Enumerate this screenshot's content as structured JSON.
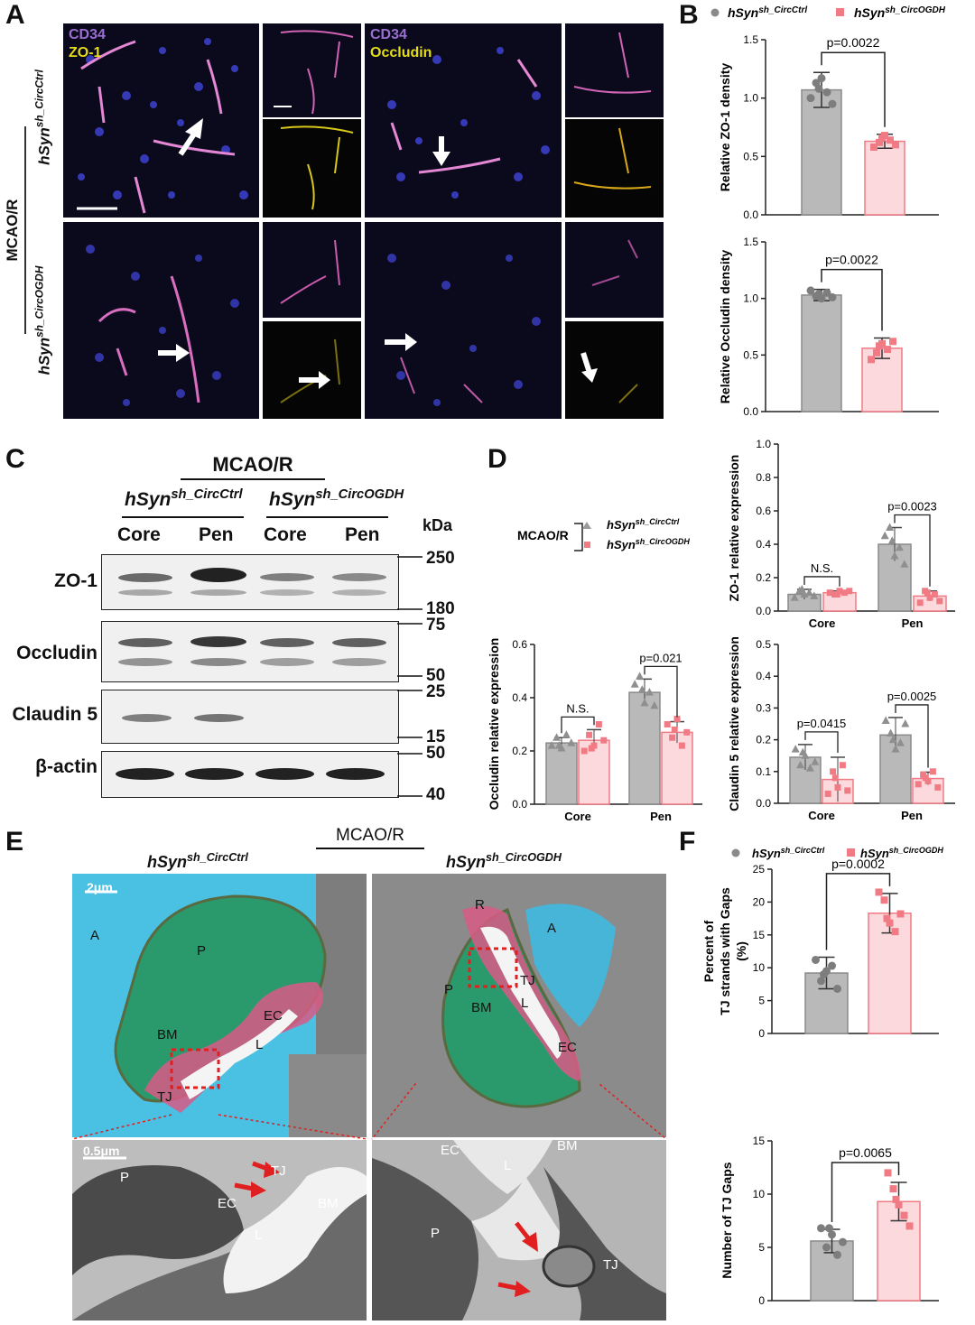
{
  "panel_labels": {
    "a": "A",
    "b": "B",
    "c": "C",
    "d": "D",
    "e": "E",
    "f": "F"
  },
  "groups": {
    "ctrl": "hSyn",
    "ctrl_sup": "sh_CircCtrl",
    "kd": "hSyn",
    "kd_sup": "sh_CircOGDH",
    "model": "MCAO/R"
  },
  "colors": {
    "ctrl": "#b9b9b9",
    "ctrl_dark": "#8a8a8a",
    "kd": "#fcd9dc",
    "kd_dark": "#f07b84"
  },
  "panel_a": {
    "stain_left_1": "CD34",
    "stain_left_2": "ZO-1",
    "stain_right_1": "CD34",
    "stain_right_2": "Occludin"
  },
  "panel_c": {
    "kda": "kDa",
    "lanes": [
      "Core",
      "Pen",
      "Core",
      "Pen"
    ],
    "proteins": [
      "ZO-1",
      "Occludin",
      "Claudin 5",
      "β-actin"
    ],
    "markers": [
      "250",
      "180",
      "75",
      "50",
      "25",
      "15",
      "50",
      "40"
    ]
  },
  "panel_d": {
    "legend_model": "MCAO/R"
  },
  "panel_e": {
    "scale_top": "2μm",
    "scale_bottom": "0.5μm",
    "labels_ctrl_top": [
      "A",
      "P",
      "EC",
      "L",
      "BM",
      "TJ"
    ],
    "labels_kd_top": [
      "R",
      "A",
      "TJ",
      "P",
      "BM",
      "L",
      "EC"
    ],
    "labels_ctrl_bottom": [
      "P",
      "TJ",
      "EC",
      "L",
      "BM"
    ],
    "labels_kd_bottom": [
      "EC",
      "L",
      "BM",
      "P",
      "TJ"
    ]
  },
  "chart_data": [
    {
      "id": "B1",
      "type": "bar",
      "categories": [
        "hSyn sh_CircCtrl",
        "hSyn sh_CircOGDH"
      ],
      "values": [
        1.07,
        0.63
      ],
      "errors": [
        0.15,
        0.06
      ],
      "points": [
        [
          1.0,
          1.13,
          1.17,
          1.05,
          0.95,
          1.08
        ],
        [
          0.58,
          0.62,
          0.68,
          0.64,
          0.6,
          0.66
        ]
      ],
      "ylabel": "Relative ZO-1 density",
      "ylim": [
        0,
        1.5
      ],
      "yticks": [
        0.0,
        0.5,
        1.0,
        1.5
      ],
      "annotation": "p=0.0022"
    },
    {
      "id": "B2",
      "type": "bar",
      "categories": [
        "hSyn sh_CircCtrl",
        "hSyn sh_CircOGDH"
      ],
      "values": [
        1.03,
        0.56
      ],
      "errors": [
        0.05,
        0.09
      ],
      "points": [
        [
          1.07,
          1.02,
          1.0,
          1.05,
          1.01,
          1.04
        ],
        [
          0.46,
          0.52,
          0.6,
          0.55,
          0.62,
          0.58
        ]
      ],
      "ylabel": "Relative Occludin density",
      "ylim": [
        0,
        1.5
      ],
      "yticks": [
        0.0,
        0.5,
        1.0,
        1.5
      ],
      "annotation": "p=0.0022"
    },
    {
      "id": "D1",
      "type": "bar",
      "categories": [
        "Core",
        "Pen"
      ],
      "series": [
        {
          "name": "hSyn sh_CircCtrl",
          "values": [
            0.1,
            0.4
          ],
          "errors": [
            0.03,
            0.1
          ]
        },
        {
          "name": "hSyn sh_CircOGDH",
          "values": [
            0.11,
            0.09
          ],
          "errors": [
            0.01,
            0.03
          ]
        }
      ],
      "points": [
        [
          [
            0.08,
            0.12,
            0.1,
            0.11,
            0.09,
            0.13
          ],
          [
            0.45,
            0.5,
            0.33,
            0.38,
            0.28,
            0.42
          ]
        ],
        [
          [
            0.11,
            0.1,
            0.12,
            0.11,
            0.12,
            0.1
          ],
          [
            0.05,
            0.12,
            0.08,
            0.1,
            0.06,
            0.11
          ]
        ]
      ],
      "ylabel": "ZO-1 relative expression",
      "ylim": [
        0,
        1.0
      ],
      "yticks": [
        0.0,
        0.2,
        0.4,
        0.6,
        0.8,
        1.0
      ],
      "xlabels": [
        "Core",
        "Pen"
      ],
      "annotations": [
        "N.S.",
        "p=0.0023"
      ]
    },
    {
      "id": "D2",
      "type": "bar",
      "categories": [
        "Core",
        "Pen"
      ],
      "series": [
        {
          "name": "hSyn sh_CircCtrl",
          "values": [
            0.23,
            0.42
          ],
          "errors": [
            0.02,
            0.05
          ]
        },
        {
          "name": "hSyn sh_CircOGDH",
          "values": [
            0.24,
            0.27
          ],
          "errors": [
            0.04,
            0.04
          ]
        }
      ],
      "points": [
        [
          [
            0.22,
            0.25,
            0.21,
            0.26,
            0.23,
            0.22
          ],
          [
            0.45,
            0.48,
            0.38,
            0.42,
            0.37,
            0.43
          ]
        ],
        [
          [
            0.2,
            0.26,
            0.22,
            0.3,
            0.24,
            0.21
          ],
          [
            0.3,
            0.25,
            0.32,
            0.22,
            0.27,
            0.28
          ]
        ]
      ],
      "ylabel": "Occludin relative expression",
      "ylim": [
        0,
        0.6
      ],
      "yticks": [
        0.0,
        0.2,
        0.4,
        0.6
      ],
      "xlabels": [
        "Core",
        "Pen"
      ],
      "annotations": [
        "N.S.",
        "p=0.021"
      ]
    },
    {
      "id": "D3",
      "type": "bar",
      "categories": [
        "Core",
        "Pen"
      ],
      "series": [
        {
          "name": "hSyn sh_CircCtrl",
          "values": [
            0.145,
            0.215
          ],
          "errors": [
            0.04,
            0.055
          ]
        },
        {
          "name": "hSyn sh_CircOGDH",
          "values": [
            0.075,
            0.078
          ],
          "errors": [
            0.07,
            0.02
          ]
        }
      ],
      "points": [
        [
          [
            0.17,
            0.12,
            0.15,
            0.11,
            0.13,
            0.16
          ],
          [
            0.26,
            0.22,
            0.17,
            0.19,
            0.25,
            0.2
          ]
        ],
        [
          [
            0.03,
            0.1,
            0.05,
            0.12,
            0.04,
            0.08
          ],
          [
            0.06,
            0.09,
            0.07,
            0.1,
            0.05,
            0.08
          ]
        ]
      ],
      "ylabel": "Claudin 5 relative expression",
      "ylim": [
        0,
        0.5
      ],
      "yticks": [
        0.0,
        0.1,
        0.2,
        0.3,
        0.4,
        0.5
      ],
      "xlabels": [
        "Core",
        "Pen"
      ],
      "annotations": [
        "p=0.0415",
        "p=0.0025"
      ]
    },
    {
      "id": "F1",
      "type": "bar",
      "categories": [
        "hSyn sh_CircCtrl",
        "hSyn sh_CircOGDH"
      ],
      "values": [
        9.2,
        18.3
      ],
      "errors": [
        2.4,
        3.0
      ],
      "points": [
        [
          11.2,
          8.0,
          9.5,
          10.3,
          6.8,
          9.0
        ],
        [
          21.5,
          20.3,
          16.8,
          15.5,
          18.2,
          17.5
        ]
      ],
      "ylabel_lines": [
        "Percent of",
        "TJ strands with Gaps",
        "(%)"
      ],
      "ylim": [
        0,
        25
      ],
      "yticks": [
        0,
        5,
        10,
        15,
        20,
        25
      ],
      "annotation": "p=0.0002"
    },
    {
      "id": "F2",
      "type": "bar",
      "categories": [
        "hSyn sh_CircCtrl",
        "hSyn sh_CircOGDH"
      ],
      "values": [
        5.6,
        9.3
      ],
      "errors": [
        1.1,
        1.8
      ],
      "points": [
        [
          6.8,
          5.0,
          6.2,
          4.3,
          5.5,
          6.8
        ],
        [
          12.0,
          10.5,
          9.0,
          8.0,
          7.0,
          9.5
        ]
      ],
      "ylabel": "Number of TJ Gaps",
      "ylim": [
        0,
        15
      ],
      "yticks": [
        0,
        5,
        10,
        15
      ],
      "annotation": "p=0.0065"
    }
  ]
}
